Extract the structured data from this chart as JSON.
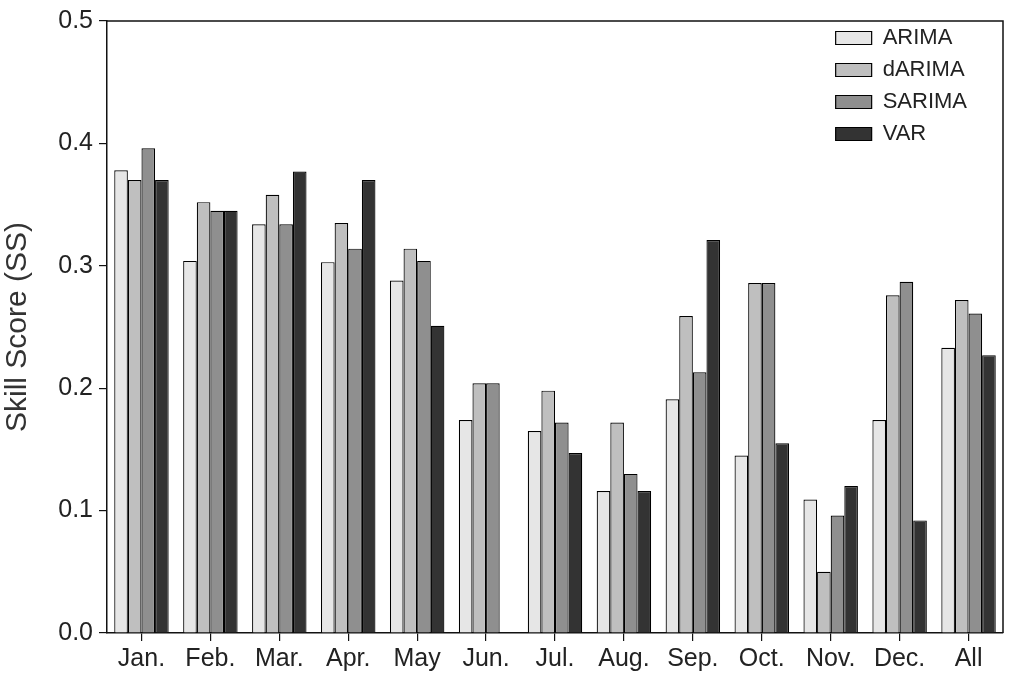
{
  "chart_data": {
    "type": "bar",
    "ylabel": "Skill Score (SS)",
    "categories": [
      "Jan.",
      "Feb.",
      "Mar.",
      "Apr.",
      "May",
      "Jun.",
      "Jul.",
      "Aug.",
      "Sep.",
      "Oct.",
      "Nov.",
      "Dec.",
      "All"
    ],
    "series": [
      {
        "name": "ARIMA",
        "color": "#e6e6e6",
        "values": [
          0.378,
          0.304,
          0.334,
          0.303,
          0.288,
          0.174,
          0.165,
          0.116,
          0.191,
          0.145,
          0.109,
          0.174,
          0.233
        ]
      },
      {
        "name": "dARIMA",
        "color": "#bfbfbf",
        "values": [
          0.37,
          0.352,
          0.358,
          0.335,
          0.314,
          0.204,
          0.198,
          0.172,
          0.259,
          0.286,
          0.05,
          0.276,
          0.272
        ]
      },
      {
        "name": "SARIMA",
        "color": "#8f8f8f",
        "values": [
          0.396,
          0.345,
          0.334,
          0.314,
          0.304,
          0.204,
          0.172,
          0.13,
          0.213,
          0.286,
          0.096,
          0.287,
          0.261
        ]
      },
      {
        "name": "VAR",
        "color": "#333333",
        "values": [
          0.37,
          0.345,
          0.377,
          0.37,
          0.251,
          null,
          0.147,
          0.116,
          0.321,
          0.155,
          0.12,
          0.092,
          0.227
        ]
      }
    ],
    "ylim": [
      0,
      0.5
    ],
    "yticks": [
      {
        "value": 0,
        "label": "0.0"
      },
      0.1,
      0.2,
      0.3,
      0.4,
      0.5
    ],
    "legend": "top right"
  }
}
